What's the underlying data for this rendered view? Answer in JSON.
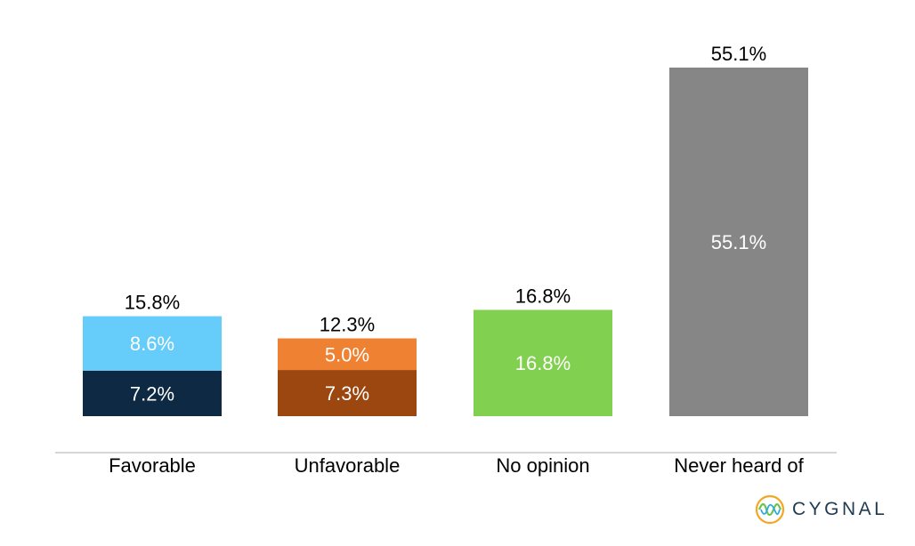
{
  "chart_data": {
    "type": "bar",
    "stacked": true,
    "categories": [
      "Favorable",
      "Unfavorable",
      "No opinion",
      "Never heard of"
    ],
    "totals": [
      "15.8%",
      "12.3%",
      "16.8%",
      "55.1%"
    ],
    "bars": [
      {
        "segments": [
          {
            "value": 7.2,
            "label": "7.2%",
            "color": "#0d2944"
          },
          {
            "value": 8.6,
            "label": "8.6%",
            "color": "#66ccf9"
          }
        ]
      },
      {
        "segments": [
          {
            "value": 7.3,
            "label": "7.3%",
            "color": "#9c470f"
          },
          {
            "value": 5.0,
            "label": "5.0%",
            "color": "#ef8132"
          }
        ]
      },
      {
        "segments": [
          {
            "value": 16.8,
            "label": "16.8%",
            "color": "#82d04f"
          }
        ]
      },
      {
        "segments": [
          {
            "value": 55.1,
            "label": "55.1%",
            "color": "#868686"
          }
        ]
      }
    ],
    "title": "",
    "xlabel": "",
    "ylabel": "",
    "ylim": [
      0,
      55.1
    ],
    "grid": false,
    "legend": "none"
  },
  "brand": {
    "logo_text": "CYGNAL",
    "logo_icon": "cygnal-logo-icon",
    "logo_colors": [
      "#f5a623",
      "#6cc24a",
      "#29abe2",
      "#1f3a52"
    ]
  }
}
